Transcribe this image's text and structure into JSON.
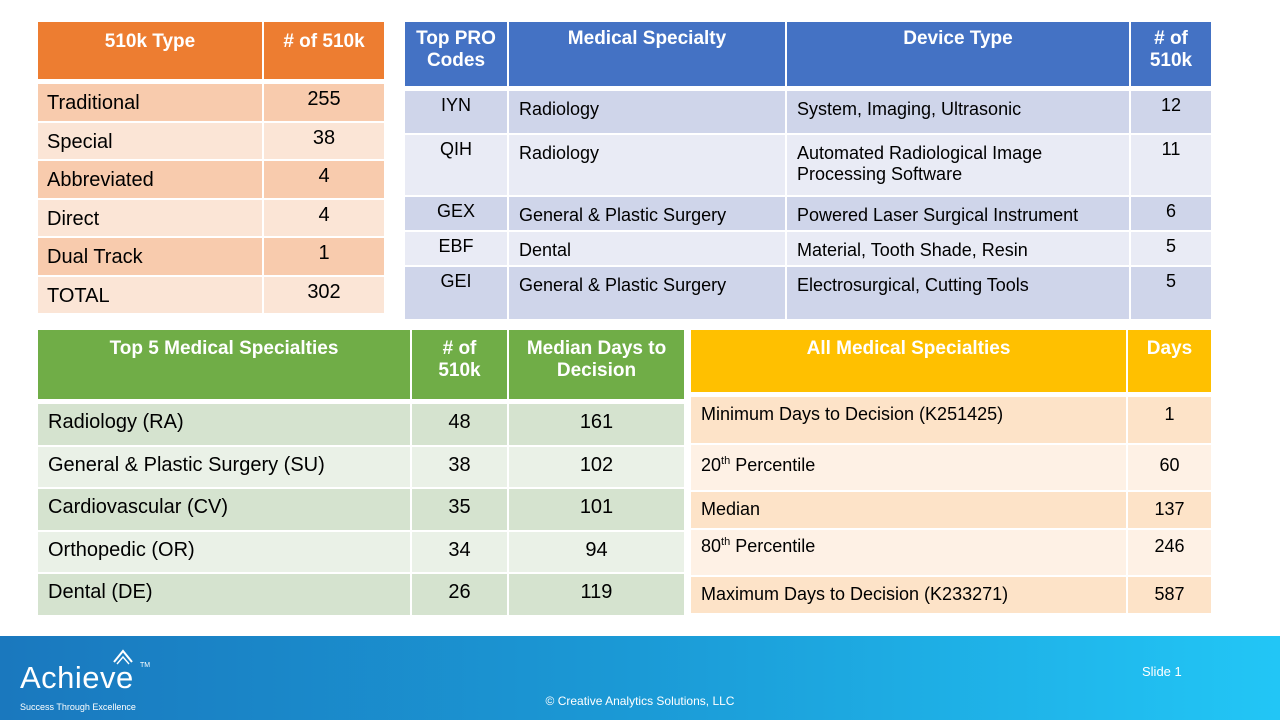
{
  "type_table": {
    "headers": [
      "510k Type",
      "# of 510k"
    ],
    "rows": [
      {
        "name": "Traditional",
        "count": "255"
      },
      {
        "name": "Special",
        "count": "38"
      },
      {
        "name": "Abbreviated",
        "count": "4"
      },
      {
        "name": "Direct",
        "count": "4"
      },
      {
        "name": "Dual Track",
        "count": "1"
      },
      {
        "name": "TOTAL",
        "count": "302"
      }
    ]
  },
  "pro_table": {
    "headers": [
      "Top PRO Codes",
      "Medical Specialty",
      "Device Type",
      "# of 510k"
    ],
    "rows": [
      {
        "code": "IYN",
        "specialty": "Radiology",
        "device": "System, Imaging, Ultrasonic",
        "count": "12"
      },
      {
        "code": "QIH",
        "specialty": "Radiology",
        "device": "Automated Radiological Image Processing Software",
        "count": "11"
      },
      {
        "code": "GEX",
        "specialty": "General & Plastic Surgery",
        "device": "Powered Laser Surgical Instrument",
        "count": "6"
      },
      {
        "code": "EBF",
        "specialty": "Dental",
        "device": "Material, Tooth Shade, Resin",
        "count": "5"
      },
      {
        "code": "GEI",
        "specialty": "General & Plastic Surgery",
        "device": "Electrosurgical, Cutting Tools",
        "count": "5"
      }
    ]
  },
  "specialty_table": {
    "headers": [
      "Top 5 Medical Specialties",
      "# of 510k",
      "Median Days to Decision"
    ],
    "rows": [
      {
        "name": "Radiology (RA)",
        "count": "48",
        "median": "161"
      },
      {
        "name": "General & Plastic Surgery (SU)",
        "count": "38",
        "median": "102"
      },
      {
        "name": "Cardiovascular (CV)",
        "count": "35",
        "median": "101"
      },
      {
        "name": "Orthopedic (OR)",
        "count": "34",
        "median": "94"
      },
      {
        "name": "Dental (DE)",
        "count": "26",
        "median": "119"
      }
    ]
  },
  "all_table": {
    "headers": [
      "All Medical Specialties",
      "Days"
    ],
    "rows": [
      {
        "name": "Minimum Days to Decision (K251425)",
        "days": "1"
      },
      {
        "name_num": "20",
        "name_sup": "th",
        "name_rest": " Percentile",
        "days": "60"
      },
      {
        "name": "Median",
        "days": "137"
      },
      {
        "name_num": "80",
        "name_sup": "th",
        "name_rest": " Percentile",
        "days": "246"
      },
      {
        "name": "Maximum Days to Decision (K233271)",
        "days": "587"
      }
    ]
  },
  "footer": {
    "logo": "Achieve",
    "logo_tm": "TM",
    "tagline": "Success Through Excellence",
    "copyright": "© Creative Analytics Solutions, LLC",
    "slide": "Slide 1"
  }
}
